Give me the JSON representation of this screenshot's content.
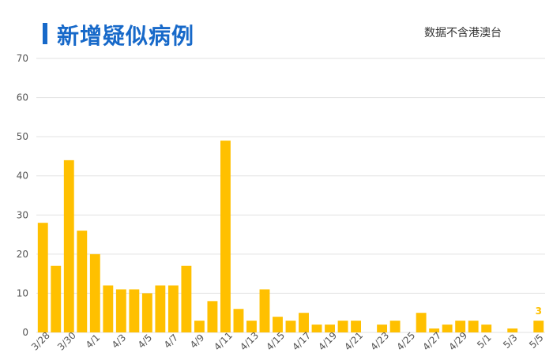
{
  "header": {
    "title": "新增疑似病例",
    "note": "数据不含港澳台"
  },
  "colors": {
    "title": "#1769c9",
    "bar": "#ffc000",
    "label": "#ffc000",
    "grid": "#e2e2e2",
    "axis_text": "#555555"
  },
  "chart_data": {
    "type": "bar",
    "title": "新增疑似病例",
    "xlabel": "",
    "ylabel": "",
    "ylim": [
      0,
      70
    ],
    "yticks": [
      0,
      10,
      20,
      30,
      40,
      50,
      60,
      70
    ],
    "grid": true,
    "legend": "none",
    "categories": [
      "3/28",
      "3/29",
      "3/30",
      "3/31",
      "4/1",
      "4/2",
      "4/3",
      "4/4",
      "4/5",
      "4/6",
      "4/7",
      "4/8",
      "4/9",
      "4/10",
      "4/11",
      "4/12",
      "4/13",
      "4/14",
      "4/15",
      "4/16",
      "4/17",
      "4/18",
      "4/19",
      "4/20",
      "4/21",
      "4/22",
      "4/23",
      "4/24",
      "4/25",
      "4/26",
      "4/27",
      "4/28",
      "4/29",
      "4/30",
      "5/1",
      "5/2",
      "5/3",
      "5/4",
      "5/5"
    ],
    "tick_labels": [
      "3/28",
      "3/30",
      "4/1",
      "4/3",
      "4/5",
      "4/7",
      "4/9",
      "4/11",
      "4/13",
      "4/15",
      "4/17",
      "4/19",
      "4/21",
      "4/23",
      "4/25",
      "4/27",
      "4/29",
      "5/1",
      "5/3",
      "5/5"
    ],
    "values": [
      28,
      17,
      44,
      26,
      20,
      12,
      11,
      11,
      10,
      12,
      12,
      17,
      3,
      8,
      49,
      6,
      3,
      11,
      4,
      3,
      5,
      2,
      2,
      3,
      3,
      0,
      2,
      3,
      0,
      5,
      1,
      2,
      3,
      3,
      2,
      0,
      1,
      0,
      3
    ],
    "data_labels": [
      {
        "category": "5/5",
        "text": "3"
      }
    ]
  }
}
